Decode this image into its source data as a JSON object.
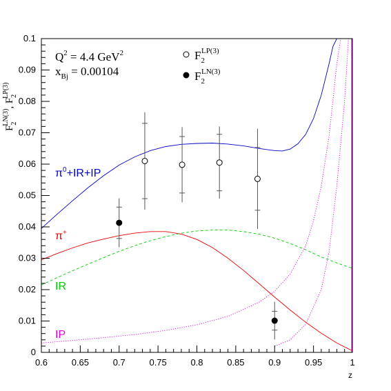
{
  "chart_data": {
    "type": "line",
    "title": "",
    "xlabel": "z",
    "ylabel": "F_2^{LN(3)}, F_2^{LP(3)}",
    "ylabel_parts": {
      "main1": "F",
      "sub1": "2",
      "sup1": "LN(3)",
      "sep": ", ",
      "main2": "F",
      "sub2": "2",
      "sup2": "LP(3)"
    },
    "xlim": [
      0.6,
      1.0
    ],
    "ylim": [
      0,
      0.1
    ],
    "grid": false,
    "x_ticks": [
      0.6,
      0.65,
      0.7,
      0.75,
      0.8,
      0.85,
      0.9,
      0.95,
      1.0
    ],
    "x_tick_labels": [
      "0.6",
      "0.65",
      "0.7",
      "0.75",
      "0.8",
      "0.85",
      "0.9",
      "0.95",
      "1"
    ],
    "y_ticks": [
      0,
      0.01,
      0.02,
      0.03,
      0.04,
      0.05,
      0.06,
      0.07,
      0.08,
      0.09,
      0.1
    ],
    "y_tick_labels": [
      "0",
      "0.01",
      "0.02",
      "0.03",
      "0.04",
      "0.05",
      "0.06",
      "0.07",
      "0.08",
      "0.09",
      "0.1"
    ],
    "annotations": {
      "q2": {
        "main": "Q",
        "sup": "2",
        "rest": " = 4.4 GeV",
        "sup2": "2"
      },
      "xbj": {
        "main": "x",
        "sub": "Bj",
        "rest": " = 0.00104"
      }
    },
    "legend": {
      "placement": "top",
      "entries": [
        {
          "marker": "open-circle",
          "main": "F",
          "sub": "2",
          "sup": "LP(3)"
        },
        {
          "marker": "filled-circle",
          "main": "F",
          "sub": "2",
          "sup": "LN(3)"
        }
      ]
    },
    "series": [
      {
        "name": "π⁰+IR+IP",
        "label_parts": {
          "main": "π",
          "sup": "0",
          "rest": "+IR+IP"
        },
        "color": "#0000cc",
        "style": "solid",
        "x": [
          0.6,
          0.62,
          0.64,
          0.66,
          0.68,
          0.7,
          0.72,
          0.74,
          0.76,
          0.78,
          0.8,
          0.82,
          0.84,
          0.86,
          0.88,
          0.9,
          0.91,
          0.92,
          0.93,
          0.94,
          0.95,
          0.96,
          0.97,
          0.975,
          0.98
        ],
        "y": [
          0.0395,
          0.044,
          0.0483,
          0.0525,
          0.0563,
          0.0597,
          0.0623,
          0.0643,
          0.0656,
          0.0663,
          0.0666,
          0.0667,
          0.0664,
          0.0658,
          0.065,
          0.0643,
          0.0642,
          0.0648,
          0.0665,
          0.0695,
          0.0745,
          0.082,
          0.092,
          0.0975,
          0.1
        ]
      },
      {
        "name": "π⁺",
        "label_parts": {
          "main": "π",
          "sup": "+",
          "rest": ""
        },
        "color": "#ee0000",
        "style": "solid",
        "x": [
          0.6,
          0.62,
          0.64,
          0.66,
          0.68,
          0.7,
          0.72,
          0.74,
          0.76,
          0.78,
          0.8,
          0.82,
          0.84,
          0.86,
          0.88,
          0.9,
          0.92,
          0.94,
          0.96,
          0.98,
          1.0
        ],
        "y": [
          0.0295,
          0.0315,
          0.0333,
          0.0349,
          0.0361,
          0.0372,
          0.038,
          0.0385,
          0.0385,
          0.0377,
          0.036,
          0.0334,
          0.03,
          0.0261,
          0.0219,
          0.0176,
          0.0135,
          0.0096,
          0.0061,
          0.003,
          0.0005
        ]
      },
      {
        "name": "IR",
        "label_parts": {
          "main": "IR",
          "sup": "",
          "rest": ""
        },
        "color": "#00cc00",
        "style": "dashed",
        "x": [
          0.6,
          0.62,
          0.64,
          0.66,
          0.68,
          0.7,
          0.72,
          0.74,
          0.76,
          0.78,
          0.8,
          0.82,
          0.84,
          0.86,
          0.88,
          0.9,
          0.92,
          0.94,
          0.96,
          0.98,
          1.0
        ],
        "y": [
          0.0215,
          0.0238,
          0.026,
          0.0281,
          0.0302,
          0.0322,
          0.034,
          0.0356,
          0.0369,
          0.038,
          0.0387,
          0.039,
          0.039,
          0.0385,
          0.0377,
          0.0364,
          0.0347,
          0.0327,
          0.0304,
          0.0285,
          0.0268
        ]
      },
      {
        "name": "IP",
        "label_parts": {
          "main": "IP",
          "sup": "",
          "rest": ""
        },
        "color": "#dd00dd",
        "style": "dotted",
        "x": [
          0.6,
          0.64,
          0.68,
          0.72,
          0.76,
          0.8,
          0.84,
          0.88,
          0.9,
          0.92,
          0.94,
          0.95,
          0.96,
          0.97,
          0.98,
          0.985
        ],
        "y": [
          0.003,
          0.0038,
          0.0047,
          0.0057,
          0.007,
          0.0088,
          0.0115,
          0.016,
          0.0195,
          0.025,
          0.034,
          0.042,
          0.053,
          0.069,
          0.092,
          0.1
        ]
      },
      {
        "name": "F2 LP(3) extra",
        "label_parts": null,
        "color": "#dd00dd",
        "style": "dotted",
        "x": [
          0.9,
          0.92,
          0.94,
          0.96,
          0.97,
          0.98,
          0.99,
          0.995
        ],
        "y": [
          0.002,
          0.004,
          0.009,
          0.02,
          0.032,
          0.053,
          0.08,
          0.1
        ]
      }
    ],
    "points_LP": [
      {
        "x": 0.733,
        "y": 0.061,
        "err_stat": 0.012,
        "err_tot": 0.0155
      },
      {
        "x": 0.781,
        "y": 0.0598,
        "err_stat": 0.009,
        "err_tot": 0.012
      },
      {
        "x": 0.829,
        "y": 0.0605,
        "err_stat": 0.009,
        "err_tot": 0.0115
      },
      {
        "x": 0.878,
        "y": 0.0553,
        "err_stat": 0.01,
        "err_tot": 0.016
      }
    ],
    "points_LN": [
      {
        "x": 0.7,
        "y": 0.0413,
        "err_stat": 0.005,
        "err_tot": 0.0078
      },
      {
        "x": 0.9,
        "y": 0.0101,
        "err_stat": 0.003,
        "err_tot": 0.006
      }
    ]
  }
}
